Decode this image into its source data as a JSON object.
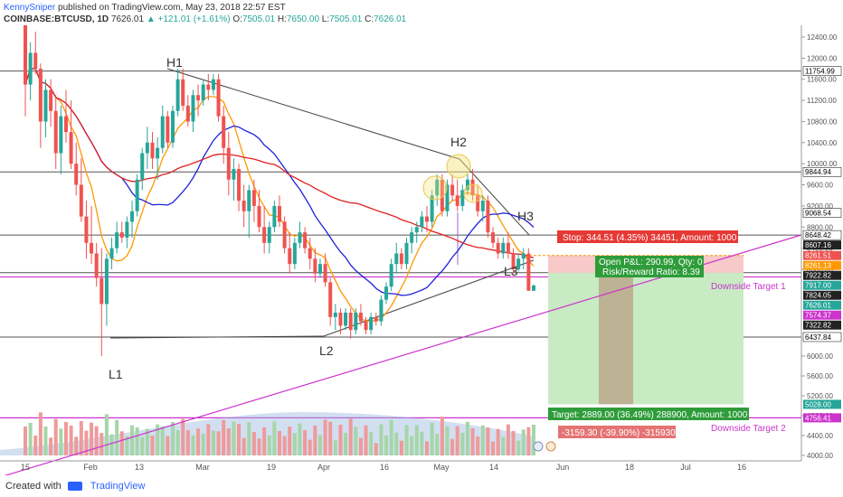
{
  "header": {
    "author": "KennySniper",
    "published": "published on TradingView.com, May 23, 2018 22:57 EST",
    "symbol": "COINBASE:BTCUSD, 1D",
    "close_price": "7626.01",
    "change": "▲ +121.01 (+1.61%)",
    "open_label": "O:",
    "open": "7505.01",
    "high_label": "H:",
    "high": "7650.00",
    "low_label": "L:",
    "low": "7505.01",
    "close_label": "C:",
    "close": "7626.01"
  },
  "footer": {
    "created_with": "Created with",
    "brand": "TradingView"
  },
  "colors": {
    "up": "#26a69a",
    "down": "#ef5350",
    "ma_fast": "#ff9800",
    "ma_mid": "#1e22d8",
    "ma_slow": "#e02020",
    "support": "#cc33cc",
    "stop_zone": "#f8c9c9",
    "target_zone": "#c8ebc4"
  },
  "chart_data": {
    "type": "candlestick",
    "symbol": "COINBASE:BTCUSD",
    "interval": "1D",
    "price_axis_ticks": [
      12400,
      12000,
      11600,
      11200,
      10800,
      10400,
      10000,
      9600,
      9200,
      8800,
      8400,
      8000,
      6000,
      5600,
      5200,
      4800,
      4400,
      4000
    ],
    "time_axis_ticks": [
      "15",
      "Feb",
      "13",
      "Mar",
      "19",
      "Apr",
      "16",
      "May",
      "14",
      "Jun",
      "18",
      "Jul",
      "16"
    ],
    "price_labels": [
      {
        "value": 11754.99,
        "text": "11754.99",
        "color": "#000000"
      },
      {
        "value": 9844.94,
        "text": "9844.94",
        "color": "#000000"
      },
      {
        "value": 9068.54,
        "text": "9068.54",
        "color": "#000000"
      },
      {
        "value": 8648.42,
        "text": "8648.42",
        "color": "#000000"
      },
      {
        "value": 8607.16,
        "text": "8607.16",
        "color": "#ffffff"
      },
      {
        "value": 8261.51,
        "text": "8261.51",
        "color": "#ef5350"
      },
      {
        "value": 8261.13,
        "text": "8261.13",
        "color": "#ff9800"
      },
      {
        "value": 7922.82,
        "text": "7922.82",
        "color": "#ffffff"
      },
      {
        "value": 7917.0,
        "text": "7917.00",
        "color": "#26a69a"
      },
      {
        "value": 7824.05,
        "text": "7824.05",
        "color": "#ffffff"
      },
      {
        "value": 7626.01,
        "text": "7626.01",
        "color": "#26a69a"
      },
      {
        "value": 7574.37,
        "text": "7574.37",
        "color": "#cc33cc"
      },
      {
        "value": 7322.82,
        "text": "7322.82",
        "color": "#ffffff"
      },
      {
        "value": 6437.84,
        "text": "6437.84",
        "color": "#000000"
      },
      {
        "value": 5028.0,
        "text": "5028.00",
        "color": "#26a69a"
      },
      {
        "value": 4756.41,
        "text": "4756.41",
        "color": "#cc33cc"
      }
    ],
    "pattern_labels": [
      "H1",
      "H2",
      "H3",
      "L1",
      "L2",
      "L3"
    ],
    "annotations": {
      "stop": "Stop: 344.51 (4.35%) 34451, Amount: 1000",
      "open_pl": "Open P&L: 290.99, Qty: 0",
      "risk_reward": "Risk/Reward Ratio: 8.39",
      "target": "Target: 2889.00 (36.49%) 288900, Amount: 1000",
      "loss": "-3159.30 (-39.90%) -315930",
      "downside_target_1": "Downside Target 1",
      "downside_target_2": "Downside Target 2"
    },
    "levels": {
      "entry": 7917.0,
      "stop": 8261.51,
      "target": 5028.0,
      "current": 7626.01,
      "downside_target_1": 7824.05,
      "downside_target_2": 4756.41
    },
    "candles": [
      [
        12700,
        12900,
        10900,
        11500
      ],
      [
        11500,
        12300,
        11200,
        12100
      ],
      [
        12100,
        12500,
        11700,
        11800
      ],
      [
        11800,
        11900,
        10300,
        10800
      ],
      [
        10800,
        11600,
        10500,
        11400
      ],
      [
        11400,
        11600,
        10700,
        11000
      ],
      [
        11000,
        11300,
        9900,
        10200
      ],
      [
        10200,
        11100,
        9800,
        10900
      ],
      [
        10900,
        11400,
        10400,
        10600
      ],
      [
        10600,
        11200,
        9900,
        10000
      ],
      [
        10000,
        10400,
        9400,
        9600
      ],
      [
        9600,
        10100,
        8900,
        9000
      ],
      [
        9000,
        9300,
        8200,
        8500
      ],
      [
        8500,
        9200,
        8100,
        8300
      ],
      [
        8300,
        8500,
        7600,
        7800
      ],
      [
        7800,
        8400,
        6000,
        7200
      ],
      [
        7200,
        8300,
        6700,
        8200
      ],
      [
        8200,
        8600,
        8000,
        8400
      ],
      [
        8400,
        8900,
        8300,
        8700
      ],
      [
        8700,
        8900,
        8500,
        8600
      ],
      [
        8600,
        9000,
        8400,
        8900
      ],
      [
        8900,
        9300,
        8600,
        9100
      ],
      [
        9100,
        9800,
        9000,
        9700
      ],
      [
        9700,
        10300,
        9500,
        10200
      ],
      [
        10200,
        10700,
        9900,
        10400
      ],
      [
        10400,
        10600,
        9900,
        10100
      ],
      [
        10100,
        10500,
        9700,
        10300
      ],
      [
        10300,
        11100,
        10200,
        10900
      ],
      [
        10900,
        11000,
        10300,
        10400
      ],
      [
        10400,
        11100,
        10300,
        11000
      ],
      [
        11000,
        11800,
        10900,
        11600
      ],
      [
        11600,
        11800,
        11000,
        11100
      ],
      [
        11100,
        11300,
        10700,
        10800
      ],
      [
        10800,
        11400,
        10600,
        11300
      ],
      [
        11300,
        11500,
        10900,
        11200
      ],
      [
        11200,
        11600,
        11100,
        11500
      ],
      [
        11500,
        11700,
        11200,
        11400
      ],
      [
        11400,
        11700,
        11300,
        11600
      ],
      [
        11600,
        11700,
        10800,
        10900
      ],
      [
        10900,
        11100,
        10000,
        10300
      ],
      [
        10300,
        10600,
        9400,
        9700
      ],
      [
        9700,
        10100,
        9300,
        9900
      ],
      [
        9900,
        10000,
        9100,
        9300
      ],
      [
        9300,
        9600,
        8800,
        9100
      ],
      [
        9100,
        9600,
        8600,
        9500
      ],
      [
        9500,
        9700,
        8900,
        9200
      ],
      [
        9200,
        9500,
        8700,
        8800
      ],
      [
        8800,
        9200,
        8300,
        8500
      ],
      [
        8500,
        8900,
        8300,
        8800
      ],
      [
        8800,
        9300,
        8700,
        9200
      ],
      [
        9200,
        9400,
        8800,
        8900
      ],
      [
        8900,
        9000,
        8300,
        8400
      ],
      [
        8400,
        8700,
        7900,
        8100
      ],
      [
        8100,
        8600,
        8000,
        8500
      ],
      [
        8500,
        8900,
        8400,
        8700
      ],
      [
        8700,
        8800,
        8300,
        8400
      ],
      [
        8400,
        8600,
        8000,
        8200
      ],
      [
        8200,
        8400,
        7700,
        7900
      ],
      [
        7900,
        8200,
        7800,
        8100
      ],
      [
        8100,
        8300,
        7600,
        7700
      ],
      [
        7700,
        7800,
        6700,
        6900
      ],
      [
        6900,
        7200,
        6600,
        7000
      ],
      [
        7000,
        7100,
        6500,
        6700
      ],
      [
        6700,
        7100,
        6600,
        7000
      ],
      [
        7000,
        7100,
        6400,
        6600
      ],
      [
        6600,
        7100,
        6500,
        7000
      ],
      [
        7000,
        7200,
        6700,
        6800
      ],
      [
        6800,
        6900,
        6500,
        6600
      ],
      [
        6600,
        7000,
        6500,
        6900
      ],
      [
        6900,
        7000,
        6700,
        6800
      ],
      [
        6800,
        7400,
        6700,
        7300
      ],
      [
        7300,
        7700,
        7200,
        7600
      ],
      [
        7600,
        8200,
        7500,
        8100
      ],
      [
        8100,
        8500,
        7900,
        8300
      ],
      [
        8300,
        8400,
        8000,
        8100
      ],
      [
        8100,
        8600,
        8000,
        8500
      ],
      [
        8500,
        8800,
        8300,
        8700
      ],
      [
        8700,
        8900,
        8500,
        8800
      ],
      [
        8800,
        9100,
        8700,
        9000
      ],
      [
        9000,
        9200,
        8700,
        8900
      ],
      [
        8900,
        9500,
        8800,
        9400
      ],
      [
        9400,
        9800,
        9200,
        9700
      ],
      [
        9700,
        9800,
        9000,
        9100
      ],
      [
        9100,
        9700,
        9000,
        9600
      ],
      [
        9600,
        9800,
        9300,
        9400
      ],
      [
        9400,
        9700,
        9100,
        9200
      ],
      [
        9200,
        9600,
        9100,
        9500
      ],
      [
        9500,
        9800,
        9400,
        9700
      ],
      [
        9700,
        9900,
        9300,
        9400
      ],
      [
        9400,
        9600,
        9000,
        9100
      ],
      [
        9100,
        9400,
        8900,
        9300
      ],
      [
        9300,
        9400,
        8600,
        8700
      ],
      [
        8700,
        8800,
        8400,
        8500
      ],
      [
        8500,
        8600,
        8200,
        8300
      ],
      [
        8300,
        8600,
        8200,
        8500
      ],
      [
        8500,
        8700,
        8200,
        8300
      ],
      [
        8300,
        8400,
        7900,
        8000
      ],
      [
        8000,
        8300,
        7950,
        8200
      ],
      [
        8200,
        8400,
        8000,
        8300
      ],
      [
        8300,
        8400,
        7500,
        7505
      ],
      [
        7505,
        7650,
        7505,
        7626
      ]
    ]
  }
}
